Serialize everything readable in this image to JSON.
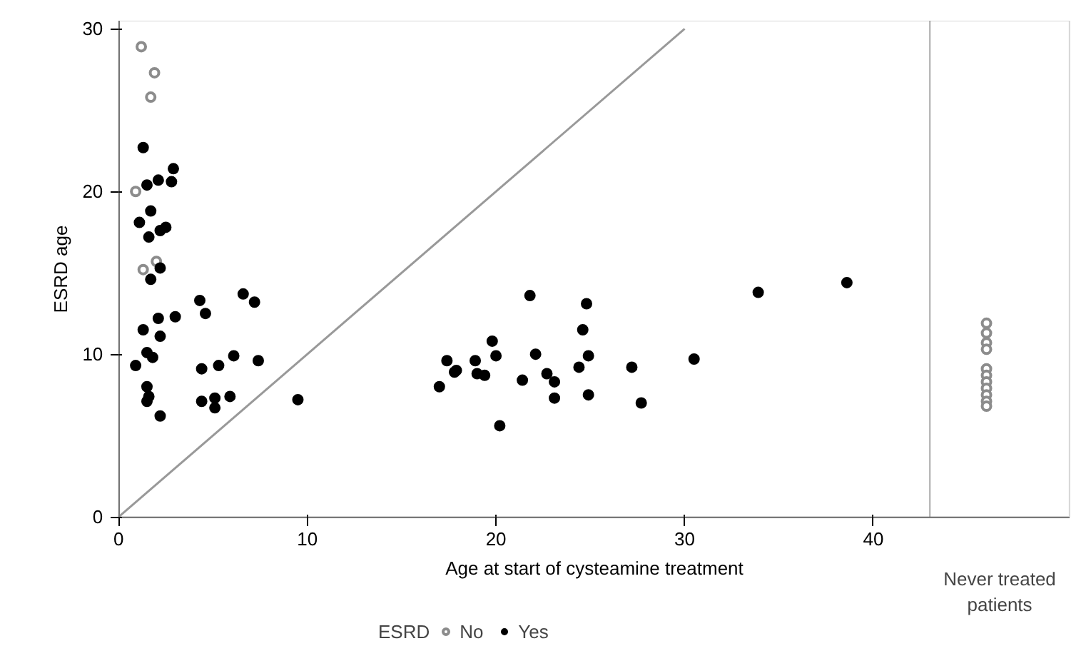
{
  "chart_data": {
    "type": "scatter",
    "xlabel": "Age at start of cysteamine treatment",
    "ylabel": "ESRD age",
    "legend_title": "ESRD",
    "legend": "bottom",
    "grid": false,
    "xlim": [
      0,
      50.4
    ],
    "ylim": [
      0,
      30.5
    ],
    "xticks": [
      0,
      10,
      20,
      30,
      40
    ],
    "yticks": [
      0,
      10,
      20,
      30
    ],
    "annotations": [
      "Never treated patients"
    ],
    "ref_lines": [
      {
        "axis": "x",
        "value": 43,
        "label": null,
        "color": "#aaaaaa"
      }
    ],
    "series": [
      {
        "type": "line",
        "color": "#999999",
        "x": [
          0,
          30
        ],
        "values": [
          0,
          30
        ]
      },
      {
        "name": "No",
        "color": "#8c8c8c",
        "marker": "circle_open",
        "x": [
          1.2,
          1.9,
          1.7,
          0.9,
          1.3,
          2.0,
          46,
          46,
          46,
          46,
          46,
          46,
          46,
          46,
          46,
          46,
          46
        ],
        "values": [
          28.9,
          27.3,
          25.8,
          20.0,
          15.2,
          15.7,
          11.9,
          11.3,
          10.7,
          10.3,
          9.1,
          8.7,
          8.3,
          7.9,
          7.5,
          7.1,
          6.8
        ]
      },
      {
        "name": "Yes",
        "color": "#000000",
        "marker": "circle",
        "x": [
          1.3,
          1.5,
          2.1,
          2.9,
          2.8,
          1.7,
          1.1,
          1.6,
          2.2,
          2.5,
          1.7,
          2.2,
          1.3,
          2.1,
          2.2,
          3.0,
          1.5,
          1.8,
          0.9,
          1.5,
          1.6,
          1.5,
          2.2,
          4.3,
          4.6,
          4.4,
          5.3,
          6.1,
          7.4,
          6.6,
          7.2,
          4.4,
          5.1,
          5.1,
          5.9,
          9.5,
          17.0,
          17.4,
          17.8,
          17.9,
          18.9,
          19.0,
          19.4,
          19.8,
          20.0,
          20.2,
          21.4,
          21.8,
          22.1,
          22.7,
          23.1,
          23.1,
          24.4,
          24.6,
          24.8,
          24.9,
          24.9,
          27.2,
          27.7,
          30.5,
          33.9,
          38.6
        ],
        "values": [
          22.7,
          20.4,
          20.7,
          21.4,
          20.6,
          18.8,
          18.1,
          17.2,
          17.6,
          17.8,
          14.6,
          15.3,
          11.5,
          12.2,
          11.1,
          12.3,
          10.1,
          9.8,
          9.3,
          8.0,
          7.4,
          7.1,
          6.2,
          13.3,
          12.5,
          9.1,
          9.3,
          9.9,
          9.6,
          13.7,
          13.2,
          7.1,
          7.3,
          6.7,
          7.4,
          7.2,
          8.0,
          9.6,
          8.9,
          9.0,
          9.6,
          8.8,
          8.7,
          10.8,
          9.9,
          5.6,
          8.4,
          13.6,
          10.0,
          8.8,
          8.3,
          7.3,
          9.2,
          11.5,
          13.1,
          9.9,
          7.5,
          9.2,
          7.0,
          9.7,
          13.8,
          14.4
        ]
      }
    ]
  }
}
